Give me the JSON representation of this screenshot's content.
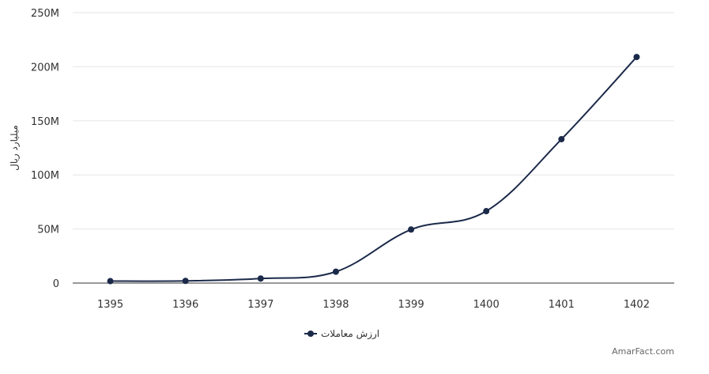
{
  "chart_data": {
    "type": "line",
    "x": [
      "1395",
      "1396",
      "1397",
      "1398",
      "1399",
      "1400",
      "1401",
      "1402"
    ],
    "series": [
      {
        "name": "ارزش معاملات",
        "values": [
          1.8,
          2.0,
          4.2,
          10.5,
          49.5,
          66.5,
          133,
          209
        ],
        "color": "#1c2a4a"
      }
    ],
    "ylabel": "میلیارد ریال",
    "xlabel": "",
    "ylim": [
      0,
      250
    ],
    "yticks": [
      0,
      50,
      100,
      150,
      200,
      250
    ],
    "ytick_labels": [
      "0",
      "50M",
      "100M",
      "150M",
      "200M",
      "250M"
    ],
    "grid": true,
    "legend": "bottom-center",
    "smooth": true
  },
  "credit": "AmarFact.com",
  "colors": {
    "line": "#1c2a4a",
    "grid": "#e6e6e6",
    "axis": "#333333"
  }
}
